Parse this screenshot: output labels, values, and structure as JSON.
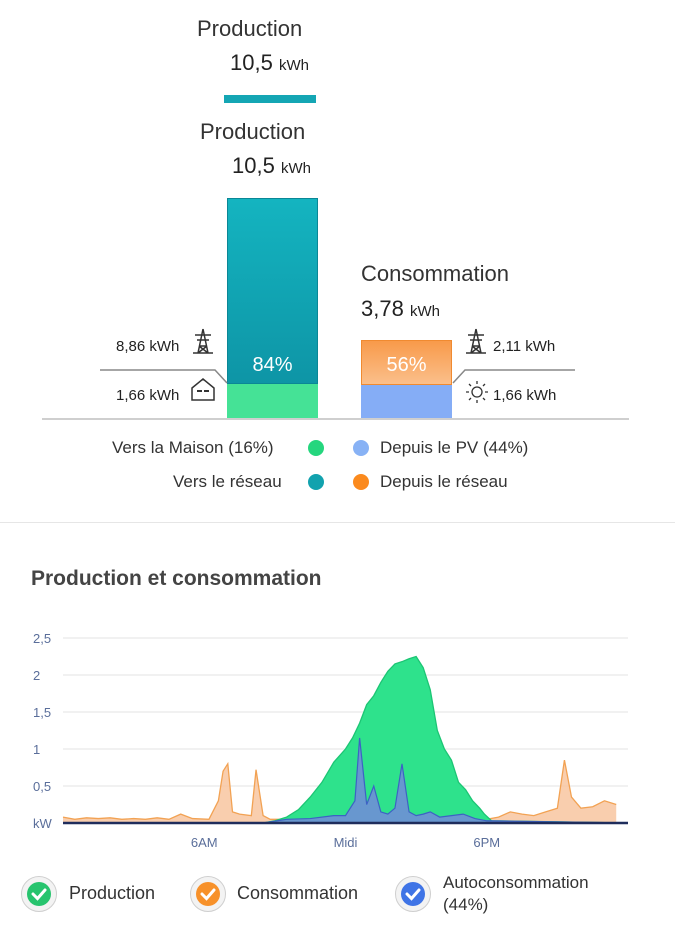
{
  "top": {
    "header_production_title": "Production",
    "header_production_value": "10,5",
    "header_production_unit": "kWh",
    "production_title": "Production",
    "production_value": "10,5",
    "production_unit": "kWh",
    "production_bar_pct": "84%",
    "consommation_title": "Consommation",
    "consommation_value": "3,78",
    "consommation_unit": "kWh",
    "consommation_bar_pct": "56%",
    "left_grid_value": "8,86",
    "left_grid_unit": "kWh",
    "left_home_value": "1,66",
    "left_home_unit": "kWh",
    "right_grid_value": "2,11",
    "right_grid_unit": "kWh",
    "right_pv_value": "1,66",
    "right_pv_unit": "kWh"
  },
  "legend": {
    "vers_maison": "Vers la Maison (16%)",
    "depuis_pv": "Depuis le PV (44%)",
    "vers_reseau": "Vers le réseau",
    "depuis_reseau": "Depuis le réseau"
  },
  "colors": {
    "production_teal": "#14a6b4",
    "maison_green": "#3ee08e",
    "pv_blue": "#86aff5",
    "reseau_orange": "#f7a055",
    "legend_green": "#25d67e",
    "legend_blue": "#88b2f5",
    "legend_teal": "#12a2ae",
    "legend_orange": "#fb8a1e"
  },
  "chart_section": {
    "title": "Production et consommation"
  },
  "chart_data": {
    "type": "area",
    "title": "Production et consommation",
    "y_unit_label": "kW",
    "y_ticks": [
      "2,5",
      "2",
      "1,5",
      "1",
      "0,5"
    ],
    "ylim": [
      0,
      2.5
    ],
    "x_ticks": [
      "6AM",
      "Midi",
      "6PM"
    ],
    "x_tick_hours": [
      6,
      12,
      18
    ],
    "xlim_hours": [
      0,
      24
    ],
    "grid": true,
    "series": [
      {
        "name": "Production",
        "color": "#2ee28c",
        "x_hours": [
          0,
          8.5,
          9.0,
          9.5,
          10.0,
          10.5,
          11.0,
          11.5,
          12.0,
          12.3,
          12.6,
          12.9,
          13.2,
          13.5,
          13.8,
          14.1,
          14.4,
          14.7,
          15.0,
          15.3,
          15.6,
          15.9,
          16.2,
          16.5,
          16.8,
          17.1,
          17.4,
          17.7,
          17.9,
          18.2,
          24
        ],
        "values": [
          0,
          0,
          0.03,
          0.08,
          0.18,
          0.35,
          0.55,
          0.82,
          1.0,
          1.15,
          1.35,
          1.6,
          1.72,
          1.9,
          2.05,
          2.15,
          2.18,
          2.22,
          2.25,
          2.1,
          1.8,
          1.25,
          1.0,
          0.85,
          0.55,
          0.45,
          0.3,
          0.2,
          0.12,
          0.03,
          0
        ]
      },
      {
        "name": "Consommation",
        "color": "#f6b98a",
        "x_hours": [
          0,
          0.5,
          1,
          1.5,
          2,
          2.5,
          3,
          3.5,
          4,
          4.5,
          5,
          5.5,
          6.2,
          6.6,
          6.8,
          7.0,
          7.2,
          7.5,
          8.0,
          8.2,
          8.5,
          8.8,
          9.5,
          10,
          11,
          12,
          13,
          14,
          15,
          16,
          17,
          18,
          18.5,
          19,
          19.5,
          20,
          20.5,
          21,
          21.3,
          21.6,
          22,
          22.5,
          23,
          23.5
        ],
        "values": [
          0.08,
          0.05,
          0.07,
          0.06,
          0.07,
          0.05,
          0.06,
          0.05,
          0.07,
          0.05,
          0.12,
          0.06,
          0.05,
          0.3,
          0.7,
          0.8,
          0.15,
          0.12,
          0.1,
          0.72,
          0.1,
          0.05,
          0.05,
          0.05,
          0.05,
          0.05,
          0.05,
          0.05,
          0.05,
          0.05,
          0.05,
          0.05,
          0.08,
          0.15,
          0.12,
          0.1,
          0.15,
          0.2,
          0.85,
          0.35,
          0.2,
          0.22,
          0.3,
          0.25
        ]
      },
      {
        "name": "Autoconsommation (44%)",
        "color": "#6f8fd6",
        "x_hours": [
          0,
          8.5,
          9.5,
          10.5,
          11.5,
          12.0,
          12.4,
          12.6,
          12.9,
          13.2,
          13.5,
          13.8,
          14.1,
          14.4,
          14.7,
          15.0,
          15.3,
          15.6,
          16.0,
          16.5,
          17.0,
          17.5,
          18.0,
          24
        ],
        "values": [
          0,
          0,
          0.05,
          0.06,
          0.1,
          0.1,
          0.3,
          1.15,
          0.25,
          0.5,
          0.15,
          0.12,
          0.2,
          0.8,
          0.15,
          0.1,
          0.12,
          0.15,
          0.08,
          0.1,
          0.12,
          0.06,
          0.03,
          0
        ]
      }
    ]
  },
  "chart_legend": {
    "production": "Production",
    "consommation": "Consommation",
    "autoconsommation_line1": "Autoconsommation",
    "autoconsommation_line2": "(44%)",
    "production_color": "#27c46e",
    "consommation_color": "#f7912a",
    "autoconsommation_color": "#3f74e6"
  }
}
